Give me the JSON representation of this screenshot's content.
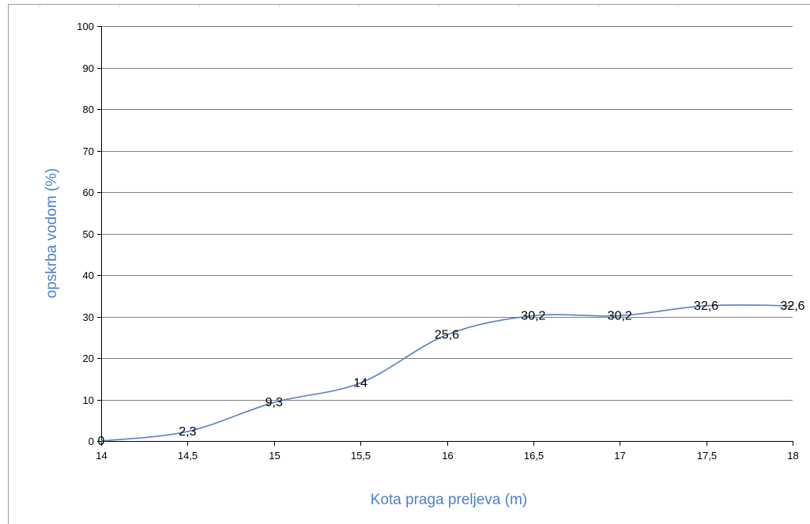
{
  "chart_data": {
    "type": "line",
    "x": [
      14,
      14.5,
      15,
      15.5,
      16,
      16.5,
      17,
      17.5,
      18
    ],
    "series": [
      {
        "values": [
          0,
          2.3,
          9.3,
          14,
          25.6,
          30.2,
          30.2,
          32.6,
          32.6
        ]
      }
    ],
    "data_labels": [
      "0",
      "2,3",
      "9,3",
      "14",
      "25,6",
      "30,2",
      "30,2",
      "32,6",
      "32,6"
    ],
    "x_tick_labels": [
      "14",
      "14,5",
      "15",
      "15,5",
      "16",
      "16,5",
      "17",
      "17,5",
      "18"
    ],
    "y_tick_labels": [
      "0",
      "10",
      "20",
      "30",
      "40",
      "50",
      "60",
      "70",
      "80",
      "90",
      "100"
    ],
    "xlabel": "Kota praga preljeva (m)",
    "ylabel": "opskrba vodom (%)",
    "xlim": [
      14,
      18
    ],
    "ylim": [
      0,
      100
    ],
    "grid": "horizontal",
    "legend": "none",
    "colors": {
      "line": "#5b7fc7",
      "axis_title": "#4a7fd1",
      "grid": "#808080",
      "frame": "#9a9a9a"
    }
  }
}
